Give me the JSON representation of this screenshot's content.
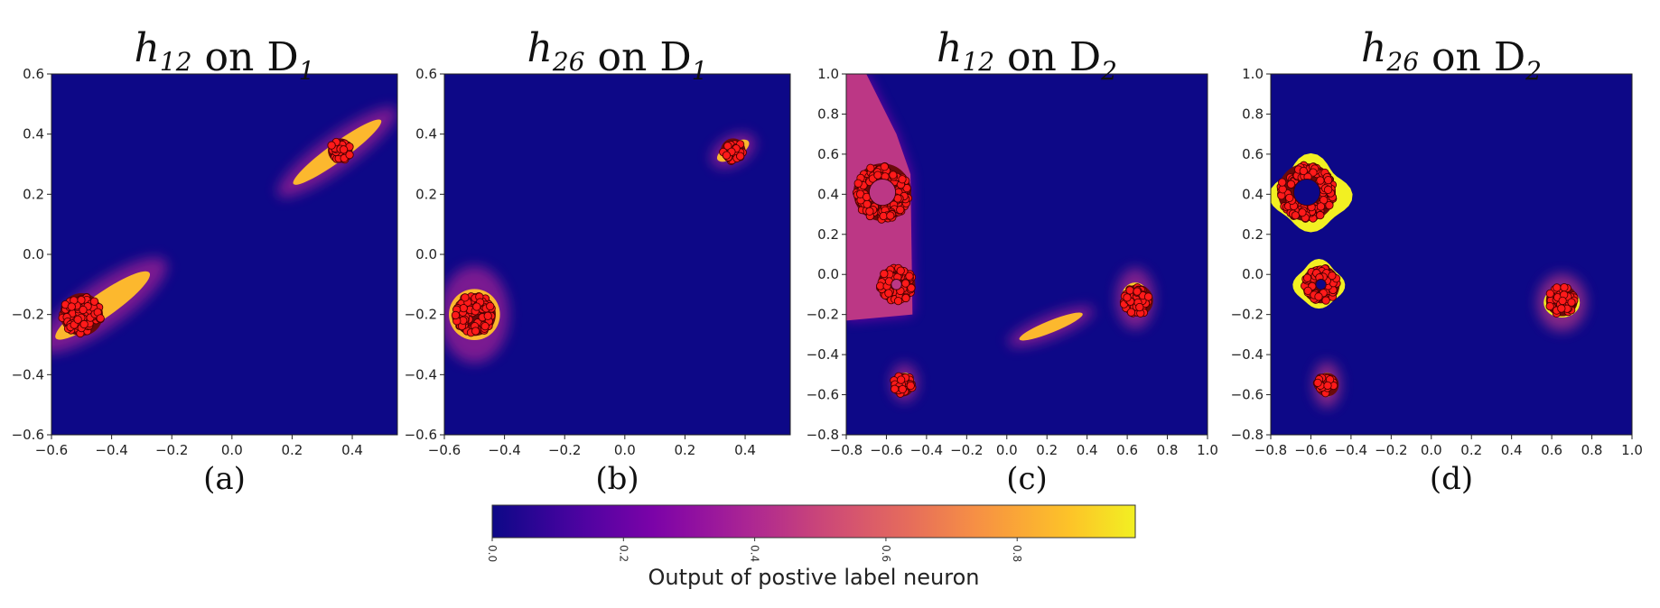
{
  "chart_data": [
    {
      "type": "heatmap",
      "panel": "a",
      "title": {
        "var": "h",
        "sub": "12",
        "word": "on",
        "set": "D",
        "setsub": "1"
      },
      "caption": "(a)",
      "xlim": [
        -0.6,
        0.55
      ],
      "ylim": [
        -0.6,
        0.6
      ],
      "xticks": [
        -0.6,
        -0.4,
        -0.2,
        0.0,
        0.2,
        0.4
      ],
      "yticks": [
        -0.6,
        -0.4,
        -0.2,
        0.0,
        0.2,
        0.4,
        0.6
      ],
      "background_value": 0.0,
      "regions": [
        {
          "shape": "ellipse",
          "cx": 0.35,
          "cy": 0.34,
          "rx": 0.18,
          "ry": 0.03,
          "angle": 36,
          "value": 0.85
        },
        {
          "shape": "ellipse",
          "cx": -0.43,
          "cy": -0.17,
          "rx": 0.19,
          "ry": 0.04,
          "angle": 35,
          "value": 0.85
        }
      ],
      "clusters": [
        {
          "cx": 0.36,
          "cy": 0.345,
          "r": 0.035,
          "hole": 0
        },
        {
          "cx": -0.5,
          "cy": -0.2,
          "r": 0.065,
          "hole": 0
        }
      ]
    },
    {
      "type": "heatmap",
      "panel": "b",
      "title": {
        "var": "h",
        "sub": "26",
        "word": "on",
        "set": "D",
        "setsub": "1"
      },
      "caption": "(b)",
      "xlim": [
        -0.6,
        0.55
      ],
      "ylim": [
        -0.6,
        0.6
      ],
      "xticks": [
        -0.6,
        -0.4,
        -0.2,
        0.0,
        0.2,
        0.4
      ],
      "yticks": [
        -0.6,
        -0.4,
        -0.2,
        0.0,
        0.2,
        0.4,
        0.6
      ],
      "background_value": 0.0,
      "regions": [
        {
          "shape": "ellipse",
          "cx": 0.36,
          "cy": 0.345,
          "rx": 0.06,
          "ry": 0.025,
          "angle": 30,
          "value": 0.85
        },
        {
          "shape": "ellipse",
          "cx": -0.5,
          "cy": -0.2,
          "rx": 0.085,
          "ry": 0.085,
          "angle": 0,
          "value": 0.85
        }
      ],
      "clusters": [
        {
          "cx": 0.36,
          "cy": 0.345,
          "r": 0.035,
          "hole": 0
        },
        {
          "cx": -0.5,
          "cy": -0.2,
          "r": 0.065,
          "hole": 0
        }
      ]
    },
    {
      "type": "heatmap",
      "panel": "c",
      "title": {
        "var": "h",
        "sub": "12",
        "word": "on",
        "set": "D",
        "setsub": "2"
      },
      "caption": "(c)",
      "xlim": [
        -0.8,
        1.0
      ],
      "ylim": [
        -0.8,
        1.0
      ],
      "xticks": [
        -0.8,
        -0.6,
        -0.4,
        -0.2,
        0.0,
        0.2,
        0.4,
        0.6,
        0.8,
        1.0
      ],
      "yticks": [
        -0.8,
        -0.6,
        -0.4,
        -0.2,
        0.0,
        0.2,
        0.4,
        0.6,
        0.8,
        1.0
      ],
      "background_value": 0.0,
      "regions": [
        {
          "shape": "polygon",
          "points": [
            [
              -0.8,
              1.0
            ],
            [
              -0.7,
              1.0
            ],
            [
              -0.55,
              0.7
            ],
            [
              -0.48,
              0.5
            ],
            [
              -0.47,
              -0.2
            ],
            [
              -0.8,
              -0.23
            ]
          ],
          "value": 0.45
        },
        {
          "shape": "ellipse",
          "cx": 0.22,
          "cy": -0.26,
          "rx": 0.17,
          "ry": 0.03,
          "angle": 22,
          "value": 0.85
        },
        {
          "shape": "ellipse",
          "cx": 0.64,
          "cy": -0.12,
          "rx": 0.07,
          "ry": 0.08,
          "angle": 0,
          "value": 0.9
        },
        {
          "shape": "ellipse",
          "cx": -0.51,
          "cy": -0.54,
          "rx": 0.05,
          "ry": 0.05,
          "angle": 0,
          "value": 0.9
        }
      ],
      "clusters": [
        {
          "cx": -0.62,
          "cy": 0.41,
          "r": 0.135,
          "hole": 0.075
        },
        {
          "cx": -0.55,
          "cy": -0.05,
          "r": 0.085,
          "hole": 0.035
        },
        {
          "cx": 0.65,
          "cy": -0.13,
          "r": 0.07,
          "hole": 0
        },
        {
          "cx": -0.52,
          "cy": -0.55,
          "r": 0.05,
          "hole": 0
        }
      ]
    },
    {
      "type": "heatmap",
      "panel": "d",
      "title": {
        "var": "h",
        "sub": "26",
        "word": "on",
        "set": "D",
        "setsub": "2"
      },
      "caption": "(d)",
      "xlim": [
        -0.8,
        1.0
      ],
      "ylim": [
        -0.8,
        1.0
      ],
      "xticks": [
        -0.8,
        -0.6,
        -0.4,
        -0.2,
        0.0,
        0.2,
        0.4,
        0.6,
        0.8,
        1.0
      ],
      "yticks": [
        -0.8,
        -0.6,
        -0.4,
        -0.2,
        0.0,
        0.2,
        0.4,
        0.6,
        0.8,
        1.0
      ],
      "background_value": 0.0,
      "regions": [
        {
          "shape": "blob",
          "cx": -0.6,
          "cy": 0.4,
          "r": 0.185,
          "wobble": 0.35,
          "value": 0.98
        },
        {
          "shape": "blob",
          "cx": -0.56,
          "cy": -0.05,
          "r": 0.12,
          "wobble": 0.25,
          "value": 0.98
        },
        {
          "shape": "ellipse",
          "cx": 0.65,
          "cy": -0.14,
          "rx": 0.09,
          "ry": 0.075,
          "angle": 0,
          "value": 0.98
        },
        {
          "shape": "ellipse",
          "cx": -0.52,
          "cy": -0.55,
          "rx": 0.05,
          "ry": 0.06,
          "angle": 0,
          "value": 0.98
        }
      ],
      "clusters": [
        {
          "cx": -0.62,
          "cy": 0.41,
          "r": 0.135,
          "hole": 0.075
        },
        {
          "cx": -0.55,
          "cy": -0.05,
          "r": 0.085,
          "hole": 0.035
        },
        {
          "cx": 0.65,
          "cy": -0.13,
          "r": 0.07,
          "hole": 0
        },
        {
          "cx": -0.52,
          "cy": -0.55,
          "r": 0.05,
          "hole": 0
        }
      ]
    }
  ],
  "colorbar": {
    "colormap": "plasma",
    "range": [
      0.0,
      0.98
    ],
    "ticks": [
      "0.0",
      "0.2",
      "0.4",
      "0.6",
      "0.8"
    ],
    "tick_values": [
      0.0,
      0.2,
      0.4,
      0.6,
      0.8
    ],
    "label": "Output of postive label neuron",
    "orientation": "horizontal"
  }
}
